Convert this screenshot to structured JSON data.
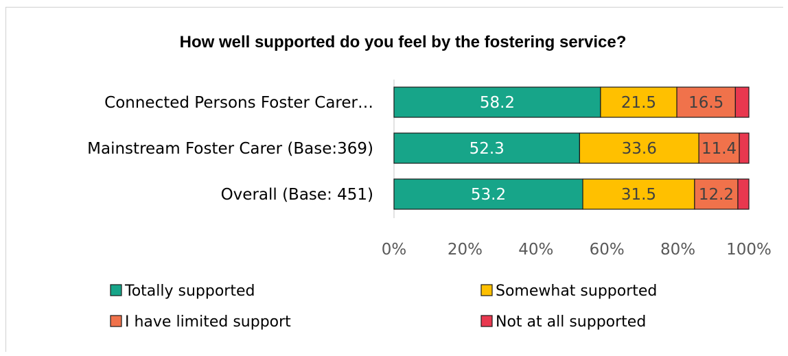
{
  "chart_data": {
    "type": "bar",
    "orientation": "horizontal",
    "stacked": true,
    "title": "How well supported do you feel by the fostering service?",
    "categories": [
      "Connected Persons Foster Carer…",
      "Mainstream Foster Carer (Base:369)",
      "Overall (Base: 451)"
    ],
    "series": [
      {
        "name": "Totally supported",
        "color": "#17a589",
        "values": [
          58.2,
          52.3,
          53.2
        ],
        "labels": [
          "58.2",
          "52.3",
          "53.2"
        ],
        "label_color": "#ffffff"
      },
      {
        "name": "Somewhat supported",
        "color": "#ffc000",
        "values": [
          21.5,
          33.6,
          31.5
        ],
        "labels": [
          "21.5",
          "33.6",
          "31.5"
        ],
        "label_color": "#404040"
      },
      {
        "name": "I have limited support",
        "color": "#f0724b",
        "values": [
          16.5,
          11.4,
          12.2
        ],
        "labels": [
          "16.5",
          "11.4",
          "12.2"
        ],
        "label_color": "#404040"
      },
      {
        "name": "Not at all supported",
        "color": "#e8384f",
        "values": [
          3.8,
          2.7,
          3.1
        ],
        "labels": [
          "",
          "",
          ""
        ],
        "label_color": "#404040"
      }
    ],
    "xlim": [
      0,
      100
    ],
    "xticks": [
      "0%",
      "20%",
      "40%",
      "60%",
      "80%",
      "100%"
    ],
    "grid": false,
    "legend_position": "bottom"
  }
}
